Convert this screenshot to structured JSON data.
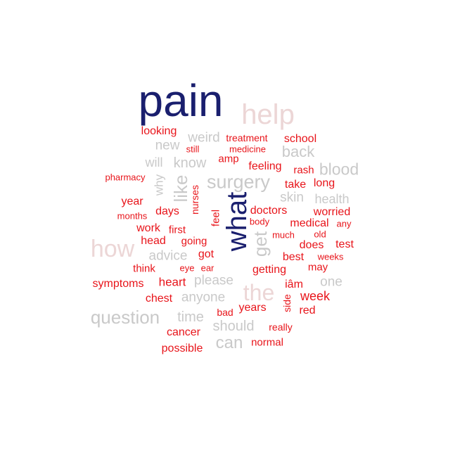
{
  "colors": {
    "navy": "#1a1f6e",
    "pink": "#ecd6d6",
    "gray": "#c9c9c9",
    "red": "#e8141a"
  },
  "words": [
    {
      "text": "pain",
      "color": "navy"
    },
    {
      "text": "help",
      "color": "pink"
    },
    {
      "text": "what",
      "color": "navy"
    },
    {
      "text": "how",
      "color": "pink"
    },
    {
      "text": "the",
      "color": "pink"
    },
    {
      "text": "surgery",
      "color": "gray"
    },
    {
      "text": "like",
      "color": "gray"
    },
    {
      "text": "get",
      "color": "gray"
    },
    {
      "text": "question",
      "color": "gray"
    },
    {
      "text": "can",
      "color": "gray"
    },
    {
      "text": "should",
      "color": "gray"
    },
    {
      "text": "blood",
      "color": "gray"
    },
    {
      "text": "back",
      "color": "gray"
    },
    {
      "text": "know",
      "color": "gray"
    },
    {
      "text": "weird",
      "color": "gray"
    },
    {
      "text": "new",
      "color": "gray"
    },
    {
      "text": "will",
      "color": "gray"
    },
    {
      "text": "why",
      "color": "gray"
    },
    {
      "text": "skin",
      "color": "gray"
    },
    {
      "text": "health",
      "color": "gray"
    },
    {
      "text": "advice",
      "color": "gray"
    },
    {
      "text": "please",
      "color": "gray"
    },
    {
      "text": "anyone",
      "color": "gray"
    },
    {
      "text": "time",
      "color": "gray"
    },
    {
      "text": "one",
      "color": "gray"
    },
    {
      "text": "looking",
      "color": "red"
    },
    {
      "text": "treatment",
      "color": "red"
    },
    {
      "text": "school",
      "color": "red"
    },
    {
      "text": "still",
      "color": "red"
    },
    {
      "text": "medicine",
      "color": "red"
    },
    {
      "text": "amp",
      "color": "red"
    },
    {
      "text": "feeling",
      "color": "red"
    },
    {
      "text": "rash",
      "color": "red"
    },
    {
      "text": "pharmacy",
      "color": "red"
    },
    {
      "text": "take",
      "color": "red"
    },
    {
      "text": "long",
      "color": "red"
    },
    {
      "text": "year",
      "color": "red"
    },
    {
      "text": "months",
      "color": "red"
    },
    {
      "text": "days",
      "color": "red"
    },
    {
      "text": "nurses",
      "color": "red"
    },
    {
      "text": "feel",
      "color": "red"
    },
    {
      "text": "doctors",
      "color": "red"
    },
    {
      "text": "worried",
      "color": "red"
    },
    {
      "text": "body",
      "color": "red"
    },
    {
      "text": "any",
      "color": "red"
    },
    {
      "text": "work",
      "color": "red"
    },
    {
      "text": "first",
      "color": "red"
    },
    {
      "text": "medical",
      "color": "red"
    },
    {
      "text": "much",
      "color": "red"
    },
    {
      "text": "old",
      "color": "red"
    },
    {
      "text": "head",
      "color": "red"
    },
    {
      "text": "going",
      "color": "red"
    },
    {
      "text": "does",
      "color": "red"
    },
    {
      "text": "test",
      "color": "red"
    },
    {
      "text": "got",
      "color": "red"
    },
    {
      "text": "best",
      "color": "red"
    },
    {
      "text": "weeks",
      "color": "red"
    },
    {
      "text": "think",
      "color": "red"
    },
    {
      "text": "eye",
      "color": "red"
    },
    {
      "text": "ear",
      "color": "red"
    },
    {
      "text": "getting",
      "color": "red"
    },
    {
      "text": "may",
      "color": "red"
    },
    {
      "text": "symptoms",
      "color": "red"
    },
    {
      "text": "heart",
      "color": "red"
    },
    {
      "text": "iâm",
      "color": "red"
    },
    {
      "text": "chest",
      "color": "red"
    },
    {
      "text": "week",
      "color": "red"
    },
    {
      "text": "years",
      "color": "red"
    },
    {
      "text": "side",
      "color": "red"
    },
    {
      "text": "bad",
      "color": "red"
    },
    {
      "text": "red",
      "color": "red"
    },
    {
      "text": "cancer",
      "color": "red"
    },
    {
      "text": "really",
      "color": "red"
    },
    {
      "text": "normal",
      "color": "red"
    },
    {
      "text": "possible",
      "color": "red"
    }
  ]
}
